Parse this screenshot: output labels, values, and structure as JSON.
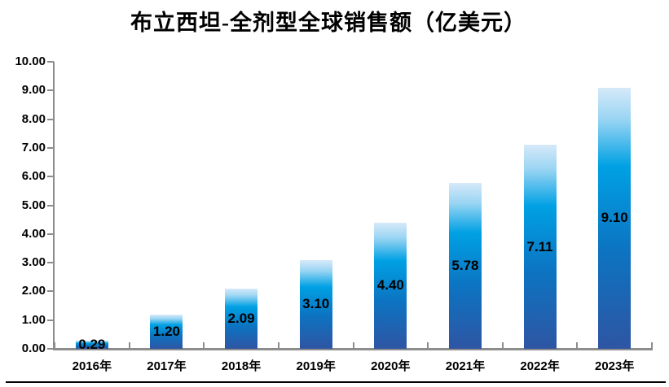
{
  "title": "布立西坦-全剂型全球销售额（亿美元）",
  "chart_data": {
    "type": "bar",
    "title": "布立西坦-全剂型全球销售额（亿美元）",
    "categories": [
      "2016年",
      "2017年",
      "2018年",
      "2019年",
      "2020年",
      "2021年",
      "2022年",
      "2023年"
    ],
    "values": [
      0.29,
      1.2,
      2.09,
      3.1,
      4.4,
      5.78,
      7.11,
      9.1
    ],
    "value_labels": [
      "0.29",
      "1.20",
      "2.09",
      "3.10",
      "4.40",
      "5.78",
      "7.11",
      "9.10"
    ],
    "xlabel": "",
    "ylabel": "",
    "ylim": [
      0,
      10
    ],
    "ytick_step": 1,
    "ytick_labels": [
      "0.00",
      "1.00",
      "2.00",
      "3.00",
      "4.00",
      "5.00",
      "6.00",
      "7.00",
      "8.00",
      "9.00",
      "10.00"
    ],
    "grid": false,
    "legend": null,
    "data_label_position": "center-inside",
    "colors": {
      "axis": "#8c8c8c",
      "text": "#000000",
      "bar_gradient": [
        {
          "color": "#d6e9f9",
          "pos": 0
        },
        {
          "color": "#9ad5f3",
          "pos": 12
        },
        {
          "color": "#00a1e4",
          "pos": 30
        },
        {
          "color": "#0c74c2",
          "pos": 62
        },
        {
          "color": "#2e55a3",
          "pos": 100
        }
      ]
    }
  }
}
